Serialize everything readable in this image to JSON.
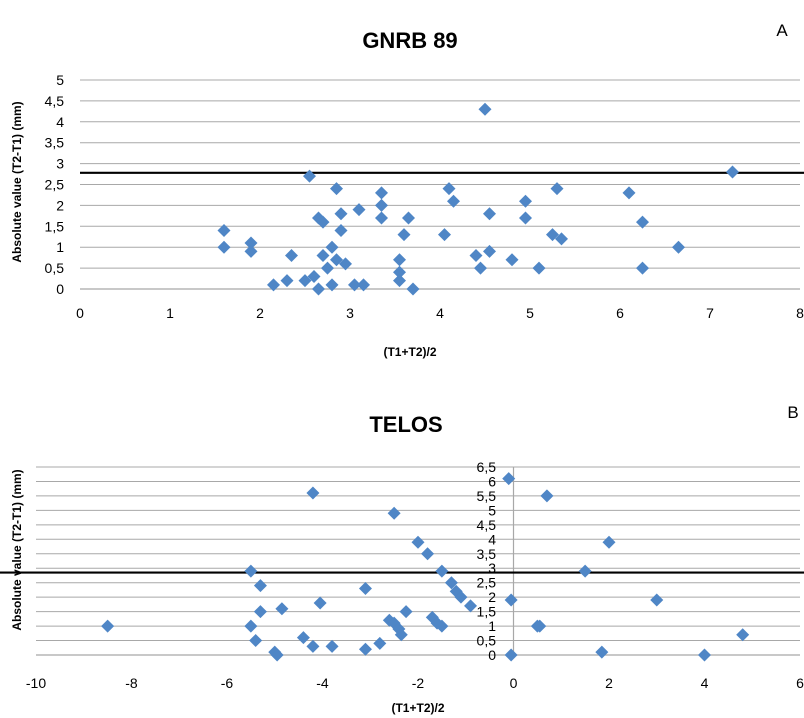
{
  "chart_data": [
    {
      "type": "scatter",
      "panel": "A",
      "title": "GNRB 89",
      "xlabel": "(T1+T2)/2",
      "ylabel": "Absolute value (T2-T1) (mm)",
      "xlim": [
        0,
        8
      ],
      "ylim": [
        0,
        5
      ],
      "x_ticks": [
        "0",
        "1",
        "2",
        "3",
        "4",
        "5",
        "6",
        "7",
        "8"
      ],
      "y_ticks": [
        "0",
        "0,5",
        "1",
        "1,5",
        "2",
        "2,5",
        "3",
        "3,5",
        "4",
        "4,5",
        "5"
      ],
      "reference_line_y": 2.78,
      "color": "#4f86c6",
      "points": [
        [
          1.6,
          1.4
        ],
        [
          1.6,
          1.0
        ],
        [
          1.9,
          1.1
        ],
        [
          1.9,
          0.9
        ],
        [
          2.15,
          0.1
        ],
        [
          2.3,
          0.2
        ],
        [
          2.35,
          0.8
        ],
        [
          2.5,
          0.2
        ],
        [
          2.6,
          0.3
        ],
        [
          2.55,
          2.7
        ],
        [
          2.65,
          1.7
        ],
        [
          2.7,
          1.6
        ],
        [
          2.65,
          0.0
        ],
        [
          2.7,
          0.8
        ],
        [
          2.75,
          0.5
        ],
        [
          2.8,
          1.0
        ],
        [
          2.8,
          0.1
        ],
        [
          2.85,
          2.4
        ],
        [
          2.85,
          0.7
        ],
        [
          2.9,
          1.8
        ],
        [
          2.9,
          1.4
        ],
        [
          2.95,
          0.6
        ],
        [
          3.05,
          0.1
        ],
        [
          3.1,
          1.9
        ],
        [
          3.15,
          0.1
        ],
        [
          3.35,
          2.3
        ],
        [
          3.35,
          2.0
        ],
        [
          3.35,
          1.7
        ],
        [
          3.55,
          0.7
        ],
        [
          3.55,
          0.4
        ],
        [
          3.55,
          0.2
        ],
        [
          3.6,
          1.3
        ],
        [
          3.65,
          1.7
        ],
        [
          3.7,
          0.0
        ],
        [
          4.05,
          1.3
        ],
        [
          4.1,
          2.4
        ],
        [
          4.15,
          2.1
        ],
        [
          4.4,
          0.8
        ],
        [
          4.45,
          0.5
        ],
        [
          4.5,
          4.3
        ],
        [
          4.55,
          1.8
        ],
        [
          4.55,
          0.9
        ],
        [
          4.8,
          0.7
        ],
        [
          4.95,
          2.1
        ],
        [
          4.95,
          1.7
        ],
        [
          5.1,
          0.5
        ],
        [
          5.25,
          1.3
        ],
        [
          5.3,
          2.4
        ],
        [
          5.35,
          1.2
        ],
        [
          6.1,
          2.3
        ],
        [
          6.25,
          1.6
        ],
        [
          6.25,
          0.5
        ],
        [
          6.65,
          1.0
        ],
        [
          7.25,
          2.8
        ]
      ]
    },
    {
      "type": "scatter",
      "panel": "B",
      "title": "TELOS",
      "xlabel": "(T1+T2)/2",
      "ylabel": "Absolute value (T2-T1) (mm)",
      "xlim": [
        -10,
        6
      ],
      "ylim": [
        0,
        6.5
      ],
      "x_ticks": [
        "-10",
        "-8",
        "-6",
        "-4",
        "-2",
        "0",
        "2",
        "4",
        "6"
      ],
      "y_ticks": [
        "0",
        "0,5",
        "1",
        "1,5",
        "2",
        "2,5",
        "3",
        "3,5",
        "4",
        "4,5",
        "5",
        "5,5",
        "6",
        "6,5"
      ],
      "reference_line_y": 2.85,
      "color": "#4f86c6",
      "points": [
        [
          -8.5,
          1.0
        ],
        [
          -5.5,
          2.9
        ],
        [
          -5.5,
          1.0
        ],
        [
          -5.4,
          0.5
        ],
        [
          -5.3,
          2.4
        ],
        [
          -5.3,
          1.5
        ],
        [
          -5.0,
          0.1
        ],
        [
          -4.95,
          0.0
        ],
        [
          -4.85,
          1.6
        ],
        [
          -4.4,
          0.6
        ],
        [
          -4.2,
          5.6
        ],
        [
          -4.2,
          0.3
        ],
        [
          -4.05,
          1.8
        ],
        [
          -3.8,
          0.3
        ],
        [
          -3.1,
          2.3
        ],
        [
          -3.1,
          0.2
        ],
        [
          -2.8,
          0.4
        ],
        [
          -2.6,
          1.2
        ],
        [
          -2.5,
          4.9
        ],
        [
          -2.5,
          1.1
        ],
        [
          -2.4,
          0.9
        ],
        [
          -2.35,
          0.7
        ],
        [
          -2.25,
          1.5
        ],
        [
          -2.0,
          3.9
        ],
        [
          -1.8,
          3.5
        ],
        [
          -1.7,
          1.3
        ],
        [
          -1.6,
          1.1
        ],
        [
          -1.5,
          2.9
        ],
        [
          -1.5,
          1.0
        ],
        [
          -1.3,
          2.5
        ],
        [
          -1.2,
          2.2
        ],
        [
          -1.1,
          2.0
        ],
        [
          -0.9,
          1.7
        ],
        [
          -0.1,
          6.1
        ],
        [
          -0.05,
          1.9
        ],
        [
          -0.05,
          0.0
        ],
        [
          0.5,
          1.0
        ],
        [
          0.55,
          1.0
        ],
        [
          0.7,
          5.5
        ],
        [
          1.5,
          2.9
        ],
        [
          1.85,
          0.1
        ],
        [
          2.0,
          3.9
        ],
        [
          3.0,
          1.9
        ],
        [
          4.0,
          0.0
        ],
        [
          4.8,
          0.7
        ]
      ]
    }
  ]
}
